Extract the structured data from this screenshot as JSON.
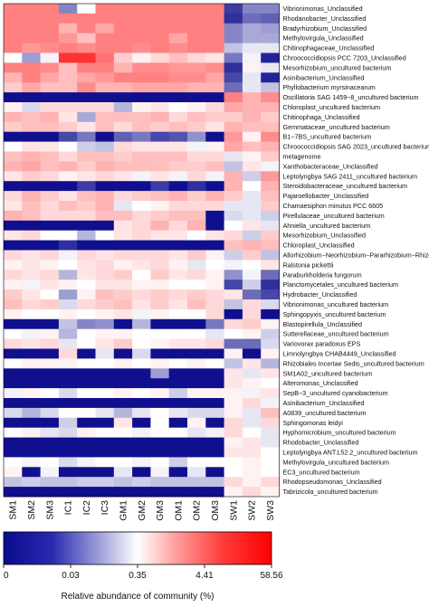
{
  "chart_data": {
    "type": "heatmap",
    "title": "",
    "columns": [
      "SM1",
      "SM2",
      "SM3",
      "IC1",
      "IC2",
      "IC3",
      "GM1",
      "GM2",
      "GM3",
      "OM1",
      "OM2",
      "OM3",
      "SW1",
      "SW2",
      "SW3"
    ],
    "rows": [
      "Vibrionimonas_Unclassified",
      "Rhodanobacter_Unclassified",
      "Bradyrhizobium_Unclassified",
      "Methylovirgula_Unclassified",
      "Chitinophagaceae_Unclassified",
      "Chroococcidiopsis PCC 7203_Unclassified",
      "Mesorhizobium_uncultured bacterium",
      "Asinibacterium_Unclassified",
      "Phyllobacterium myrsinacearum",
      "Oscillatoria SAG 1459−8_uncultured bacterium",
      "Chloroplast_uncultured bacterium",
      "Chitinophaga_Unclassified",
      "Gemmataceae_uncultured bacterium",
      "B1−7BS_uncultured bacterium",
      "Chroococcidiopsis SAG 2023_uncultured bacterium",
      "metagenome",
      "Xanthobacteraceae_Unclassified",
      "Leptolyngbya SAG 2411_uncultured bacterium",
      "Steroidobacteraceae_uncultured bacterium",
      "Pajaroellobacter_Unclassified",
      "Chamaesiphon minutus PCC 6605",
      "Pirellulaceae_uncultured bacterium",
      "Ahniella_uncultured bacterium",
      "Mesorhizobium_Unclassified",
      "Chloroplast_Unclassified",
      "Allorhizobium−Neorhizobium−Pararhizobium−Rhizobium",
      "Ralstonia pickettii",
      "Paraburkholderia fungorum",
      "Planctomycetales_uncultured bacterium",
      "Hydrobacter_Unclassified",
      "Vibrionimonas_uncultured bacterium",
      "Sphingopyxis_uncultured bacterium",
      "Blastopirellula_Unclassified",
      "Sutterellaceae_uncultured bacterium",
      "Variovorax paradoxus EPS",
      "Limnolyngbya CHAB4449_Unclassified",
      "Rhizobiales Incertae Sedis_uncultured bacterium",
      "SM1A02_uncultured bacterium",
      "Alteromonas_Unclassified",
      "SepB−3_uncultured cyanobacterium",
      "Asinibacterium_Unclassified",
      "A0839_uncultured bacterium",
      "Sphingomonas leidyi",
      "Hyphomicrobium_uncultured bacterium",
      "Rhodobacter_Unclassified",
      "Leptolyngbya ANT.L52.2_uncultured bacterium",
      "Methylovirgula_uncultured bacterium",
      "EC3_uncultured bacterium",
      "Rhodopseudomonas_Unclassified",
      "Tabrizicola_uncultured bacterium"
    ],
    "scale_levels": [
      0,
      0.03,
      0.35,
      4.41,
      58.56
    ],
    "values": [
      [
        3,
        3,
        3,
        1,
        2,
        3,
        3,
        3,
        3,
        3,
        3,
        3,
        0.4,
        1,
        1
      ],
      [
        3,
        3,
        3,
        3,
        3,
        3,
        3,
        3,
        3,
        3,
        3,
        3,
        0.3,
        0.8,
        0.7
      ],
      [
        3,
        3,
        3,
        2.6,
        3,
        2.7,
        3,
        3,
        3,
        3,
        3,
        3,
        1,
        1.3,
        1.2
      ],
      [
        3,
        3,
        3,
        2.8,
        2.5,
        3,
        3,
        3,
        3,
        2.7,
        3,
        3,
        1,
        1.3,
        1.3
      ],
      [
        3,
        2.8,
        2.9,
        3,
        2.9,
        3,
        3,
        2.9,
        3,
        2.9,
        3,
        3,
        1.5,
        1.8,
        1.8
      ],
      [
        2,
        1.2,
        1.9,
        3.6,
        3.6,
        3.1,
        2.4,
        2.1,
        2.3,
        2.5,
        2.3,
        2.2,
        0.9,
        1.9,
        0.2
      ],
      [
        3,
        3,
        2.9,
        2.5,
        3,
        3,
        2.6,
        2.9,
        2.9,
        2.8,
        2.8,
        2.9,
        0.3,
        2.1,
        1.8
      ],
      [
        2.6,
        3,
        2.7,
        2.5,
        2.7,
        2.8,
        3,
        3,
        3,
        2.9,
        2.9,
        2.7,
        0.5,
        1.8,
        0.2
      ],
      [
        2.4,
        2.7,
        2.5,
        2.5,
        2.9,
        2.6,
        2.6,
        2.7,
        2.7,
        2.7,
        2.6,
        2.6,
        0.8,
        1.8,
        1.5
      ],
      [
        0.05,
        0.05,
        0.05,
        0.05,
        0.05,
        0.05,
        0.05,
        0.05,
        0.05,
        0.05,
        0.05,
        0.05,
        3,
        2.6,
        2.9
      ],
      [
        2.1,
        1.7,
        2.3,
        2.3,
        2.3,
        2.3,
        1.4,
        2.1,
        2.2,
        2,
        2.1,
        2.3,
        2.7,
        2.6,
        2.6
      ],
      [
        2.6,
        2.5,
        2.6,
        2.2,
        1.3,
        2.5,
        2.5,
        2.5,
        2.6,
        2.3,
        2.5,
        2.4,
        2.4,
        2.6,
        2.4
      ],
      [
        2.4,
        2.5,
        2.5,
        2.4,
        2.2,
        2.5,
        2.3,
        2.5,
        2.4,
        2.5,
        2.4,
        2.2,
        2.6,
        2.5,
        2.5
      ],
      [
        0.05,
        0.05,
        0.05,
        0.5,
        0.9,
        0.05,
        0.7,
        0.9,
        0.5,
        0.6,
        1.1,
        0.05,
        2.8,
        2.1,
        2.9
      ],
      [
        2,
        2.2,
        2.2,
        2,
        1.6,
        1.5,
        2.3,
        2.2,
        2.2,
        2.2,
        1.9,
        2.1,
        2.7,
        2.5,
        2.6
      ],
      [
        2.5,
        2.6,
        2.5,
        2.3,
        2.5,
        2.5,
        2.4,
        2.5,
        2.5,
        2.5,
        2.3,
        2.3,
        1.8,
        2.1,
        2.4
      ],
      [
        2.6,
        2.7,
        2.5,
        2.6,
        2.4,
        2.6,
        2.5,
        2.5,
        2.5,
        2.4,
        2.4,
        2.5,
        1.5,
        2.2,
        1.9
      ],
      [
        2.2,
        2.4,
        2.3,
        2.1,
        2.2,
        2.3,
        2.2,
        1.9,
        2.2,
        1.9,
        2.3,
        1.9,
        2.6,
        1.6,
        2.8
      ],
      [
        0.05,
        0.05,
        0.05,
        0.05,
        0.4,
        0.05,
        0.05,
        0.05,
        0.4,
        0.05,
        0.3,
        0.05,
        2.6,
        2,
        2.6
      ],
      [
        2.3,
        2.6,
        2.4,
        2.2,
        2.5,
        2.6,
        2.3,
        2.4,
        2.5,
        2.6,
        2.4,
        2.6,
        2.4,
        1.8,
        2.5
      ],
      [
        2.2,
        2.5,
        2.3,
        2.5,
        2.4,
        2.6,
        1.8,
        2,
        2.1,
        2.3,
        2.3,
        2.3,
        1.8,
        1.8,
        2.4
      ],
      [
        2.6,
        2.5,
        2.3,
        2.3,
        2.3,
        2.5,
        2.5,
        2.3,
        2.4,
        2.5,
        2.5,
        0.05,
        1.7,
        1.8,
        1.6
      ],
      [
        0.05,
        0.05,
        0.05,
        0.05,
        0.05,
        0.05,
        2.2,
        2.3,
        2.6,
        2.3,
        2.6,
        0.05,
        2,
        2.2,
        1.8
      ],
      [
        2.2,
        2.3,
        2,
        2,
        1.4,
        2,
        2.2,
        2.3,
        2.2,
        2.2,
        2,
        2.2,
        2.3,
        1.6,
        2.4
      ],
      [
        0.05,
        0.05,
        0.05,
        0.3,
        0.05,
        0.05,
        0.05,
        0.05,
        0.05,
        0.05,
        0.05,
        0.05,
        2.5,
        2.6,
        2.5
      ],
      [
        2.3,
        2.2,
        2.3,
        1.9,
        2.3,
        2.2,
        2.3,
        2.3,
        2.3,
        2.2,
        2.4,
        2.1,
        1.6,
        2.4,
        1.5
      ],
      [
        2.1,
        2.2,
        2.1,
        2,
        2.2,
        2.3,
        2.1,
        2.2,
        2.3,
        2.1,
        1.8,
        2,
        1.9,
        2,
        2.2
      ],
      [
        2.3,
        2.2,
        2.3,
        1.4,
        2.2,
        2.3,
        2.4,
        2,
        2.4,
        2.2,
        2.3,
        2.1,
        1.1,
        1.9,
        0.8
      ],
      [
        2.1,
        1.9,
        2.2,
        2.1,
        2,
        2.2,
        2.2,
        2.1,
        2.1,
        2,
        2,
        2.1,
        0.5,
        1.6,
        0.3
      ],
      [
        2.4,
        2.2,
        2,
        1.2,
        2.1,
        2.5,
        2.4,
        2.3,
        2.4,
        2.3,
        2.4,
        2.3,
        2.2,
        0.8,
        0.5
      ],
      [
        2.5,
        2.3,
        2.4,
        1.7,
        2.3,
        2.4,
        2.5,
        2.2,
        2.4,
        2.2,
        2.5,
        2.3,
        1.5,
        2.3,
        1.7
      ],
      [
        2.1,
        2,
        2,
        2.1,
        2,
        2.1,
        2.2,
        1.9,
        2.1,
        2,
        2,
        2.3,
        0.05,
        2.3,
        0.05
      ],
      [
        0.05,
        0.05,
        0.05,
        1.5,
        1,
        1.1,
        0.05,
        1.4,
        0.05,
        0.05,
        0.05,
        0.9,
        2.3,
        2.4,
        2.1
      ],
      [
        2,
        1.9,
        2.1,
        1.4,
        2,
        2.1,
        2.1,
        2,
        2,
        2,
        2,
        1.8,
        2,
        2.1,
        1.6
      ],
      [
        2.3,
        2.2,
        2.3,
        1.8,
        2,
        2.2,
        2.4,
        2,
        2.1,
        2.2,
        2.2,
        2.3,
        0.8,
        0.8,
        1.7
      ],
      [
        0.05,
        0.05,
        0.05,
        2.3,
        0.05,
        1.8,
        0.05,
        1.7,
        0.05,
        0.05,
        0.05,
        0.05,
        2.1,
        0.05,
        2.1
      ],
      [
        2,
        2.1,
        2.1,
        2.1,
        2,
        2,
        2.1,
        2,
        2.1,
        2,
        2.1,
        2,
        1.5,
        2.2,
        1.4
      ],
      [
        0.05,
        0.05,
        0.05,
        0.05,
        0.05,
        0.05,
        0.05,
        0.05,
        1.2,
        0.05,
        0.05,
        0.05,
        2.2,
        1.8,
        2.2
      ],
      [
        0.05,
        0.05,
        0.05,
        0.05,
        0.05,
        0.05,
        0.05,
        0.05,
        0.05,
        0.05,
        0.05,
        0.05,
        2.2,
        2.1,
        2
      ],
      [
        1.9,
        2.1,
        2,
        1.7,
        2,
        2,
        2.1,
        2,
        2.1,
        1.6,
        2.1,
        2.1,
        2.1,
        1.9,
        2.2
      ],
      [
        0.05,
        0.05,
        0.05,
        0.05,
        0.05,
        0.05,
        0.05,
        0.05,
        0.05,
        0.05,
        0.05,
        0.05,
        2.1,
        2.3,
        1.9
      ],
      [
        1.7,
        1.4,
        1.7,
        2,
        2,
        1.8,
        1.4,
        1.8,
        2,
        1.8,
        1.7,
        1.7,
        2.1,
        1.8,
        2.5
      ],
      [
        0.05,
        0.05,
        0.05,
        1.6,
        0.05,
        0.05,
        2.2,
        0.05,
        2,
        0.05,
        2.1,
        0.05,
        2.3,
        1.8,
        2.3
      ],
      [
        2,
        2.1,
        1.8,
        1.7,
        2.1,
        2,
        2,
        1.9,
        2,
        2,
        1.8,
        1.9,
        2.3,
        2,
        1.8
      ],
      [
        0.05,
        0.05,
        0.05,
        0.05,
        0.05,
        0.05,
        0.05,
        0.05,
        0.05,
        0.05,
        0.05,
        0.05,
        2.1,
        2.2,
        1.8
      ],
      [
        0.05,
        0.05,
        0.05,
        0.05,
        0.05,
        0.05,
        0.05,
        0.05,
        0.05,
        0.05,
        0.05,
        0.05,
        2.2,
        2.2,
        2
      ],
      [
        2,
        1.9,
        2,
        1.7,
        1.9,
        2,
        2,
        1.9,
        2,
        1.6,
        2,
        2,
        2,
        2.1,
        2
      ],
      [
        2.1,
        0.05,
        1.9,
        0.05,
        0.05,
        0.05,
        1.8,
        0.05,
        1.9,
        0.05,
        1.8,
        0.05,
        2,
        2.1,
        2
      ],
      [
        1.5,
        1.6,
        1.5,
        1.5,
        1.6,
        1.6,
        1.5,
        1.6,
        1.5,
        1.5,
        1.5,
        1.5,
        2.3,
        2.1,
        2.3
      ],
      [
        0.05,
        0.05,
        0.05,
        0.05,
        0.05,
        0.05,
        0.05,
        0.05,
        0.05,
        0.05,
        0.05,
        0.05,
        2.1,
        2.3,
        2.1
      ]
    ],
    "value_encoding": "scale position 0-4 mapped between scale_levels (0, 0.03, 0.35, 4.41, 58.56)",
    "colorbar": {
      "title": "Relative abundance of community (%)",
      "ticks": [
        "0",
        "0.03",
        "0.35",
        "4.41",
        "58.56"
      ],
      "colors": [
        "#0a0a8c",
        "#ffffff",
        "#ff0000"
      ]
    },
    "legend_position": "bottom"
  }
}
